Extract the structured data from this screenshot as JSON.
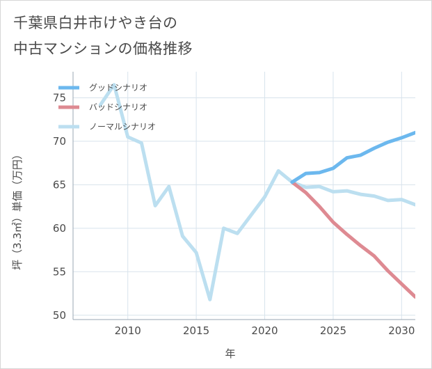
{
  "title_lines": [
    "千葉県白井市けやき台の",
    "中古マンションの価格推移"
  ],
  "colors": {
    "good": "#6cb8ee",
    "bad": "#de8a92",
    "normal": "#bcdff0",
    "grid": "#d8e3ec",
    "axis": "#9aa7b3"
  },
  "chart_data": {
    "type": "line",
    "title": "千葉県白井市けやき台の中古マンションの価格推移",
    "xlabel": "年",
    "ylabel": "坪（3.3㎡）単価（万円）",
    "xlim": [
      2006,
      2031
    ],
    "ylim": [
      49.5,
      78
    ],
    "xticks": [
      2010,
      2015,
      2020,
      2025,
      2030
    ],
    "yticks": [
      50,
      55,
      60,
      65,
      70,
      75
    ],
    "grid": true,
    "legend_position": "top-left",
    "series": [
      {
        "name": "グッドシナリオ",
        "color_key": "good",
        "x": [
          2022,
          2023,
          2024,
          2025,
          2026,
          2027,
          2028,
          2029,
          2030,
          2031
        ],
        "y": [
          65.3,
          66.3,
          66.4,
          66.9,
          68.1,
          68.4,
          69.2,
          69.9,
          70.4,
          71.0
        ]
      },
      {
        "name": "バッドシナリオ",
        "color_key": "bad",
        "x": [
          2022,
          2023,
          2024,
          2025,
          2026,
          2027,
          2028,
          2029,
          2030,
          2031
        ],
        "y": [
          65.3,
          64.1,
          62.5,
          60.7,
          59.3,
          58.0,
          56.8,
          55.1,
          53.6,
          52.1
        ]
      },
      {
        "name": "ノーマルシナリオ",
        "color_key": "normal",
        "x": [
          2008,
          2009,
          2010,
          2011,
          2012,
          2013,
          2014,
          2015,
          2016,
          2017,
          2018,
          2019,
          2020,
          2021,
          2022,
          2023,
          2024,
          2025,
          2026,
          2027,
          2028,
          2029,
          2030,
          2031
        ],
        "y": [
          74.2,
          76.5,
          70.5,
          69.8,
          62.6,
          64.8,
          59.1,
          57.2,
          51.8,
          60.0,
          59.4,
          61.5,
          63.6,
          66.6,
          65.3,
          64.7,
          64.8,
          64.2,
          64.3,
          63.9,
          63.7,
          63.2,
          63.3,
          62.7
        ]
      }
    ]
  }
}
